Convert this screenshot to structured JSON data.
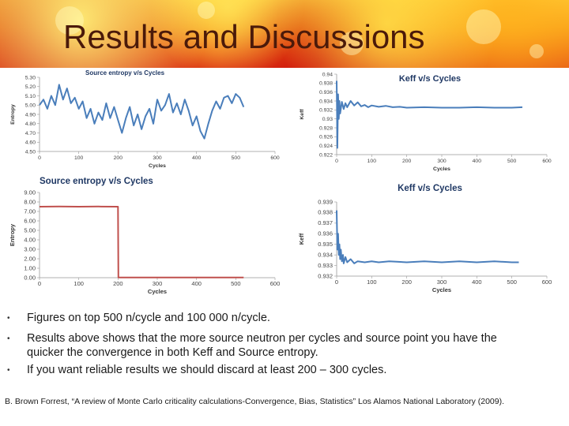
{
  "slide": {
    "title": "Results and Discussions",
    "bullets": [
      "Figures on top 500 n/cycle and 100 000 n/cycle.",
      "Results above shows that the more source neutron per cycles and source point you have the",
      "quicker the convergence in both Keff and Source entropy.",
      "If you want reliable results we should discard at least 200 – 300 cycles."
    ],
    "citation": "B. Brown Forrest, “A review of Monte Carlo criticality calculations-Convergence, Bias, Statistics” Los Alamos National Laboratory (2009).",
    "line_color": "#4a7ebb",
    "alt_line_color": "#c0504d"
  },
  "chart_data": [
    {
      "type": "line",
      "title": "Source entropy v/s Cycles",
      "xlabel": "Cycles",
      "ylabel": "Entropy",
      "xlim": [
        0,
        600
      ],
      "ylim": [
        4.5,
        5.3
      ],
      "x_ticks": [
        "0",
        "100",
        "200",
        "300",
        "400",
        "500",
        "600"
      ],
      "y_ticks": [
        "4.50",
        "4.60",
        "4.70",
        "4.80",
        "4.90",
        "5.00",
        "5.10",
        "5.20",
        "5.30"
      ],
      "grid": false,
      "series": [
        {
          "color": "#4a7ebb",
          "x": [
            0,
            10,
            20,
            30,
            40,
            50,
            60,
            70,
            80,
            90,
            100,
            110,
            120,
            130,
            140,
            150,
            160,
            170,
            180,
            190,
            200,
            210,
            220,
            230,
            240,
            250,
            260,
            270,
            280,
            290,
            300,
            310,
            320,
            330,
            340,
            350,
            360,
            370,
            380,
            390,
            400,
            410,
            420,
            430,
            440,
            450,
            460,
            470,
            480,
            490,
            500,
            510,
            520
          ],
          "y": [
            5.0,
            5.06,
            4.96,
            5.1,
            5.0,
            5.22,
            5.06,
            5.18,
            5.02,
            5.08,
            4.96,
            5.04,
            4.86,
            4.96,
            4.8,
            4.92,
            4.84,
            5.02,
            4.86,
            4.98,
            4.84,
            4.7,
            4.86,
            4.98,
            4.78,
            4.9,
            4.74,
            4.88,
            4.96,
            4.8,
            5.06,
            4.94,
            5.0,
            5.12,
            4.92,
            5.02,
            4.9,
            5.06,
            4.94,
            4.78,
            4.88,
            4.72,
            4.64,
            4.8,
            4.94,
            5.04,
            4.96,
            5.08,
            5.1,
            5.02,
            5.12,
            5.08,
            4.98
          ]
        }
      ]
    },
    {
      "type": "line",
      "title": "Keff v/s Cycles",
      "xlabel": "Cycles",
      "ylabel": "Keff",
      "xlim": [
        0,
        600
      ],
      "ylim": [
        0.922,
        0.94
      ],
      "x_ticks": [
        "0",
        "100",
        "200",
        "300",
        "400",
        "500",
        "600"
      ],
      "y_ticks": [
        "0.922",
        "0.924",
        "0.926",
        "0.928",
        "0.93",
        "0.932",
        "0.934",
        "0.936",
        "0.938",
        "0.94"
      ],
      "grid": false,
      "series": [
        {
          "color": "#4a7ebb",
          "x": [
            0,
            2,
            4,
            6,
            8,
            10,
            15,
            20,
            25,
            30,
            40,
            50,
            60,
            70,
            80,
            90,
            100,
            120,
            140,
            160,
            180,
            200,
            250,
            300,
            350,
            400,
            450,
            500,
            530
          ],
          "y": [
            0.9385,
            0.9235,
            0.9355,
            0.93,
            0.934,
            0.9312,
            0.9338,
            0.9322,
            0.9335,
            0.9326,
            0.934,
            0.933,
            0.9337,
            0.9328,
            0.9331,
            0.9326,
            0.933,
            0.9327,
            0.9329,
            0.9326,
            0.9327,
            0.9325,
            0.9326,
            0.9325,
            0.9325,
            0.9326,
            0.9325,
            0.9325,
            0.9326
          ]
        }
      ]
    },
    {
      "type": "line",
      "title": "Source entropy v/s Cycles",
      "xlabel": "Cycles",
      "ylabel": "Entropy",
      "xlim": [
        0,
        600
      ],
      "ylim": [
        0,
        9
      ],
      "x_ticks": [
        "0",
        "100",
        "200",
        "300",
        "400",
        "500",
        "600"
      ],
      "y_ticks": [
        "0.00",
        "1.00",
        "2.00",
        "3.00",
        "4.00",
        "5.00",
        "6.00",
        "7.00",
        "8.00",
        "9.00"
      ],
      "grid": false,
      "series": [
        {
          "color": "#c0504d",
          "x": [
            0,
            50,
            100,
            150,
            200,
            201,
            210,
            250,
            300,
            350,
            400,
            450,
            500,
            520
          ],
          "y": [
            7.5,
            7.52,
            7.5,
            7.52,
            7.5,
            0.02,
            0.02,
            0.02,
            0.02,
            0.02,
            0.02,
            0.02,
            0.02,
            0.02
          ]
        }
      ]
    },
    {
      "type": "line",
      "title": "Keff v/s Cycles",
      "xlabel": "Cycles",
      "ylabel": "Keff",
      "xlim": [
        0,
        600
      ],
      "ylim": [
        0.932,
        0.939
      ],
      "x_ticks": [
        "0",
        "100",
        "200",
        "300",
        "400",
        "500",
        "600"
      ],
      "y_ticks": [
        "0.932",
        "0.933",
        "0.934",
        "0.935",
        "0.936",
        "0.937",
        "0.938",
        "0.939"
      ],
      "grid": false,
      "series": [
        {
          "color": "#4a7ebb",
          "x": [
            0,
            2,
            4,
            6,
            8,
            10,
            12,
            15,
            18,
            20,
            25,
            30,
            40,
            50,
            60,
            80,
            100,
            120,
            150,
            200,
            250,
            300,
            350,
            400,
            450,
            500,
            520
          ],
          "y": [
            0.9382,
            0.9345,
            0.936,
            0.934,
            0.935,
            0.9336,
            0.9345,
            0.9334,
            0.934,
            0.9332,
            0.9338,
            0.9333,
            0.9336,
            0.9332,
            0.9334,
            0.9333,
            0.9334,
            0.9333,
            0.9334,
            0.9333,
            0.9334,
            0.9333,
            0.9334,
            0.9333,
            0.9334,
            0.9333,
            0.9333
          ]
        }
      ]
    }
  ]
}
